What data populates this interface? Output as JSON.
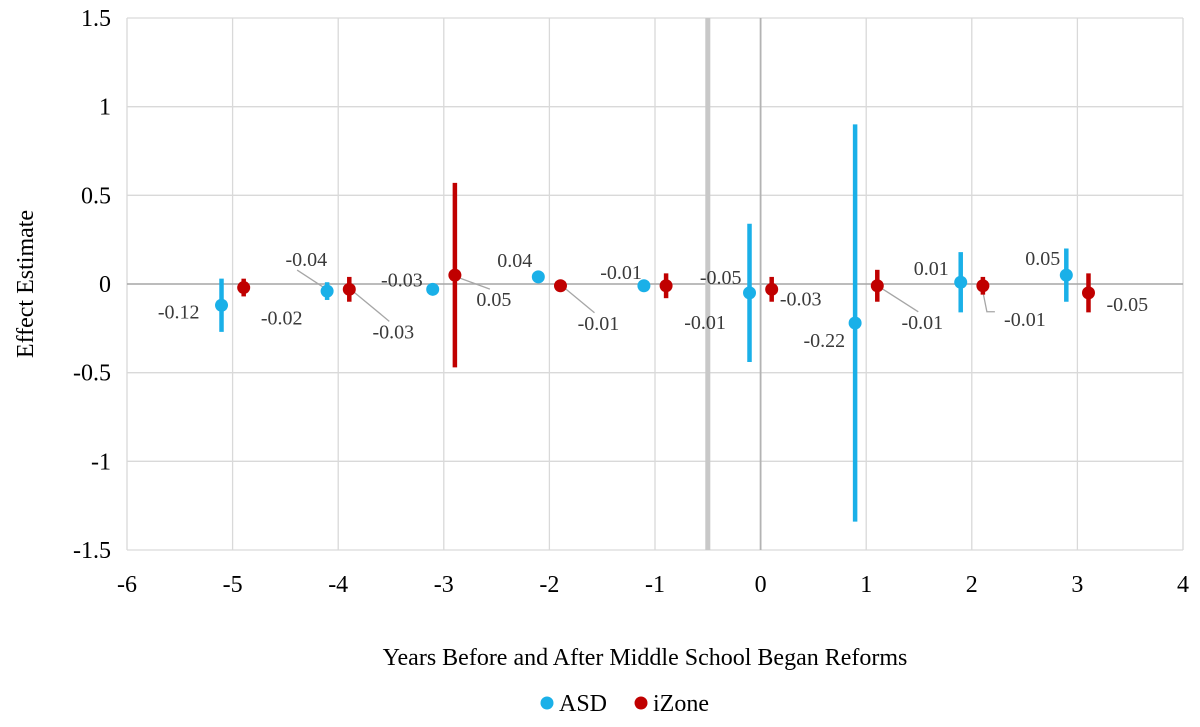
{
  "chart_data": {
    "type": "scatter",
    "title": "",
    "xlabel": "Years Before and After Middle School Began Reforms",
    "ylabel": "Effect Estimate",
    "xlim": [
      -6,
      4
    ],
    "ylim": [
      -1.5,
      1.5
    ],
    "x_ticks": [
      "-6",
      "-5",
      "-4",
      "-3",
      "-2",
      "-1",
      "0",
      "1",
      "2",
      "3",
      "4"
    ],
    "y_ticks": [
      "1.5",
      "1",
      "0.5",
      "0",
      "-0.5",
      "-1",
      "-1.5"
    ],
    "grid": true,
    "reference_line_x": -0.5,
    "legend_position": "bottom",
    "series": [
      {
        "name": "ASD",
        "color": "#1ab0e8",
        "points": [
          {
            "x": -5,
            "y": -0.12,
            "low": -0.27,
            "high": 0.03,
            "label": "-0.12"
          },
          {
            "x": -4,
            "y": -0.04,
            "low": -0.09,
            "high": 0.01,
            "label": "-0.04"
          },
          {
            "x": -3,
            "y": -0.03,
            "low": -0.05,
            "high": -0.01,
            "label": "-0.03"
          },
          {
            "x": -2,
            "y": 0.04,
            "low": 0.02,
            "high": 0.06,
            "label": "0.04"
          },
          {
            "x": -1,
            "y": -0.01,
            "low": -0.03,
            "high": 0.01,
            "label": "-0.01"
          },
          {
            "x": 0,
            "y": -0.05,
            "low": -0.44,
            "high": 0.34,
            "label": "-0.05"
          },
          {
            "x": 1,
            "y": -0.22,
            "low": -1.34,
            "high": 0.9,
            "label": "-0.22"
          },
          {
            "x": 2,
            "y": 0.01,
            "low": -0.16,
            "high": 0.18,
            "label": "0.01"
          },
          {
            "x": 3,
            "y": 0.05,
            "low": -0.1,
            "high": 0.2,
            "label": "0.05"
          }
        ]
      },
      {
        "name": "iZone",
        "color": "#c00000",
        "points": [
          {
            "x": -5,
            "y": -0.02,
            "low": -0.07,
            "high": 0.03,
            "label": "-0.02"
          },
          {
            "x": -4,
            "y": -0.03,
            "low": -0.1,
            "high": 0.04,
            "label": "-0.03"
          },
          {
            "x": -3,
            "y": 0.05,
            "low": -0.47,
            "high": 0.57,
            "label": "0.05"
          },
          {
            "x": -2,
            "y": -0.01,
            "low": -0.03,
            "high": 0.01,
            "label": "-0.01"
          },
          {
            "x": -1,
            "y": -0.01,
            "low": -0.08,
            "high": 0.06,
            "label": "-0.01"
          },
          {
            "x": 0,
            "y": -0.03,
            "low": -0.1,
            "high": 0.04,
            "label": "-0.03"
          },
          {
            "x": 1,
            "y": -0.01,
            "low": -0.1,
            "high": 0.08,
            "label": "-0.01"
          },
          {
            "x": 2,
            "y": -0.01,
            "low": -0.06,
            "high": 0.04,
            "label": "-0.01"
          },
          {
            "x": 3,
            "y": -0.05,
            "low": -0.16,
            "high": 0.06,
            "label": "-0.05"
          }
        ]
      }
    ]
  }
}
